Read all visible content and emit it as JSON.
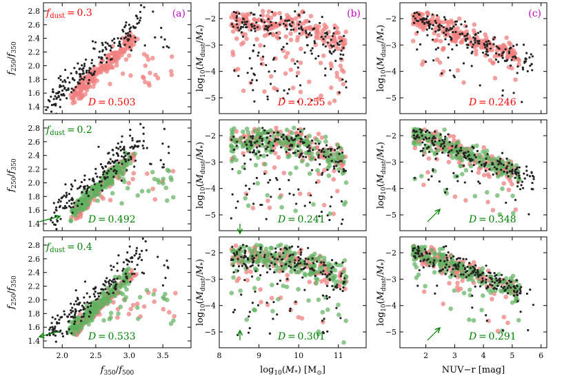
{
  "figure": {
    "panel_letters": [
      "(a)",
      "(b)",
      "(c)"
    ],
    "row_labels": [
      {
        "text": "f_dust = 0.3",
        "color": "#ff0000"
      },
      {
        "text": "f_dust = 0.2",
        "color": "#008000"
      },
      {
        "text": "f_dust = 0.4",
        "color": "#008000"
      }
    ],
    "colors": {
      "observed": "#222222",
      "model_red": "#f08080",
      "model_green": "#60b060",
      "panel_letter": "#c000c0"
    }
  },
  "chart_data": [
    {
      "type": "scatter",
      "panel": "row1-col1",
      "title": "",
      "xlabel": "",
      "ylabel": "f250/f350",
      "xlim": [
        1.72,
        3.92
      ],
      "ylim": [
        1.3,
        2.92
      ],
      "xticks": [],
      "yticks": [
        1.4,
        1.6,
        1.8,
        2.0,
        2.2,
        2.4,
        2.6,
        2.8
      ],
      "annotation": "D = 0.503",
      "annotation_color": "#ff0000",
      "series": [
        {
          "name": "observed",
          "color": "#222222"
        },
        {
          "name": "model",
          "color": "#f08080"
        }
      ]
    },
    {
      "type": "scatter",
      "panel": "row1-col2",
      "title": "",
      "xlabel": "",
      "ylabel": "log10(Mdust/M*)",
      "xlim": [
        8.0,
        11.7
      ],
      "ylim": [
        -5.6,
        -1.4
      ],
      "xticks": [],
      "yticks": [
        -5,
        -4,
        -3,
        -2
      ],
      "annotation": "D = 0.255",
      "annotation_color": "#ff0000",
      "series": [
        {
          "name": "observed",
          "color": "#222222"
        },
        {
          "name": "model",
          "color": "#f08080"
        }
      ]
    },
    {
      "type": "scatter",
      "panel": "row1-col3",
      "title": "",
      "xlabel": "",
      "ylabel": "log10(Mdust/M*)",
      "xlim": [
        1.1,
        6.2
      ],
      "ylim": [
        -5.6,
        -1.4
      ],
      "xticks": [],
      "yticks": [
        -5,
        -4,
        -3,
        -2
      ],
      "annotation": "D = 0.246",
      "annotation_color": "#ff0000",
      "series": [
        {
          "name": "observed",
          "color": "#222222"
        },
        {
          "name": "model",
          "color": "#f08080"
        }
      ]
    },
    {
      "type": "scatter",
      "panel": "row2-col1",
      "title": "",
      "xlabel": "",
      "ylabel": "f250/f350",
      "xlim": [
        1.72,
        3.92
      ],
      "ylim": [
        1.3,
        2.92
      ],
      "xticks": [],
      "yticks": [
        1.4,
        1.6,
        1.8,
        2.0,
        2.2,
        2.4,
        2.6,
        2.8
      ],
      "annotation": "D = 0.492",
      "annotation_color": "#008000",
      "series": [
        {
          "name": "observed",
          "color": "#222222"
        },
        {
          "name": "model 0.3",
          "color": "#f08080"
        },
        {
          "name": "model 0.2",
          "color": "#60b060"
        }
      ]
    },
    {
      "type": "scatter",
      "panel": "row2-col2",
      "title": "",
      "xlabel": "",
      "ylabel": "log10(Mdust/M*)",
      "xlim": [
        8.0,
        11.7
      ],
      "ylim": [
        -5.6,
        -1.4
      ],
      "xticks": [],
      "yticks": [
        -5,
        -4,
        -3,
        -2
      ],
      "annotation": "D = 0.241",
      "annotation_color": "#008000",
      "series": [
        {
          "name": "observed",
          "color": "#222222"
        },
        {
          "name": "model 0.3",
          "color": "#f08080"
        },
        {
          "name": "model 0.2",
          "color": "#60b060"
        }
      ]
    },
    {
      "type": "scatter",
      "panel": "row2-col3",
      "title": "",
      "xlabel": "",
      "ylabel": "log10(Mdust/M*)",
      "xlim": [
        1.1,
        6.2
      ],
      "ylim": [
        -5.6,
        -1.4
      ],
      "xticks": [],
      "yticks": [
        -5,
        -4,
        -3,
        -2
      ],
      "annotation": "D = 0.348",
      "annotation_color": "#008000",
      "series": [
        {
          "name": "observed",
          "color": "#222222"
        },
        {
          "name": "model 0.3",
          "color": "#f08080"
        },
        {
          "name": "model 0.2",
          "color": "#60b060"
        }
      ]
    },
    {
      "type": "scatter",
      "panel": "row3-col1",
      "title": "",
      "xlabel": "f350/f500",
      "ylabel": "f250/f350",
      "xlim": [
        1.72,
        3.92
      ],
      "ylim": [
        1.3,
        2.92
      ],
      "xticks": [
        2.0,
        2.5,
        3.0,
        3.5
      ],
      "yticks": [
        1.4,
        1.6,
        1.8,
        2.0,
        2.2,
        2.4,
        2.6,
        2.8
      ],
      "annotation": "D = 0.533",
      "annotation_color": "#008000",
      "series": [
        {
          "name": "observed",
          "color": "#222222"
        },
        {
          "name": "model 0.3",
          "color": "#f08080"
        },
        {
          "name": "model 0.4",
          "color": "#60b060"
        }
      ]
    },
    {
      "type": "scatter",
      "panel": "row3-col2",
      "title": "",
      "xlabel": "log10(M*) [M⊙]",
      "ylabel": "log10(Mdust/M*)",
      "xlim": [
        8.0,
        11.7
      ],
      "ylim": [
        -5.6,
        -1.4
      ],
      "xticks": [
        8,
        9,
        10,
        11
      ],
      "yticks": [
        -5,
        -4,
        -3,
        -2
      ],
      "annotation": "D = 0.301",
      "annotation_color": "#008000",
      "series": [
        {
          "name": "observed",
          "color": "#222222"
        },
        {
          "name": "model 0.3",
          "color": "#f08080"
        },
        {
          "name": "model 0.4",
          "color": "#60b060"
        }
      ]
    },
    {
      "type": "scatter",
      "panel": "row3-col3",
      "title": "",
      "xlabel": "NUV−r [mag]",
      "ylabel": "log10(Mdust/M*)",
      "xlim": [
        1.1,
        6.2
      ],
      "ylim": [
        -5.6,
        -1.4
      ],
      "xticks": [
        2,
        3,
        4,
        5,
        6
      ],
      "yticks": [
        -5,
        -4,
        -3,
        -2
      ],
      "annotation": "D = 0.291",
      "annotation_color": "#008000",
      "series": [
        {
          "name": "observed",
          "color": "#222222"
        },
        {
          "name": "model 0.3",
          "color": "#f08080"
        },
        {
          "name": "model 0.4",
          "color": "#60b060"
        }
      ]
    }
  ]
}
